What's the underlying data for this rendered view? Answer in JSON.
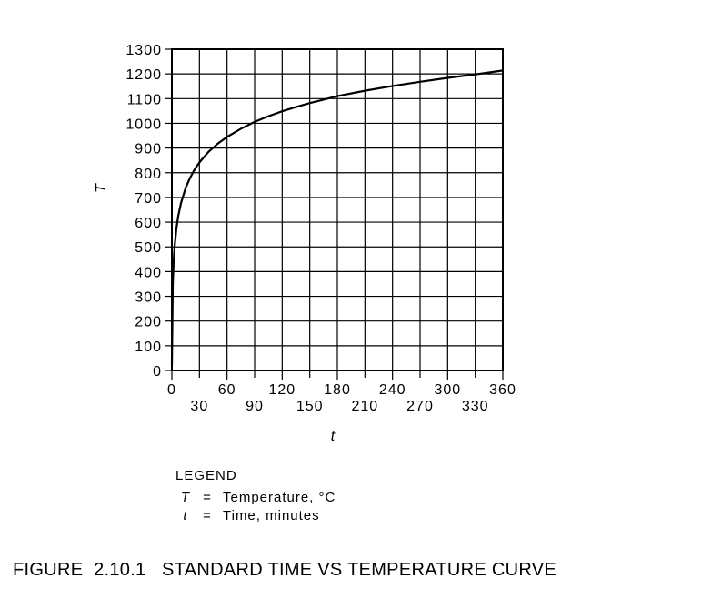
{
  "chart_data": {
    "type": "line",
    "xlabel": "t",
    "ylabel": "T",
    "xlim": [
      0,
      360
    ],
    "ylim": [
      0,
      1300
    ],
    "grid": true,
    "x_ticks_top": [
      "0",
      "60",
      "120",
      "180",
      "240",
      "300",
      "360"
    ],
    "x_ticks_bottom": [
      "30",
      "90",
      "150",
      "210",
      "270",
      "330"
    ],
    "y_ticks": [
      "0",
      "100",
      "200",
      "300",
      "400",
      "500",
      "600",
      "700",
      "800",
      "900",
      "1000",
      "1100",
      "1200",
      "1300"
    ],
    "series": [
      {
        "x": [
          0,
          1,
          2,
          3,
          5,
          7,
          10,
          15,
          20,
          25,
          30,
          40,
          50,
          60,
          75,
          90,
          105,
          120,
          135,
          150,
          165,
          180,
          210,
          240,
          270,
          300,
          330,
          360
        ],
        "y": [
          20,
          349,
          445,
          502,
          576,
          626,
          678,
          739,
          781,
          815,
          842,
          885,
          918,
          945,
          978,
          1006,
          1029,
          1049,
          1066,
          1082,
          1096,
          1110,
          1132,
          1151,
          1168,
          1184,
          1198,
          1214
        ]
      }
    ]
  },
  "legend": {
    "title": "LEGEND",
    "items": [
      {
        "symbol": "T",
        "eq": "=",
        "desc": "Temperature, °C"
      },
      {
        "symbol": "t",
        "eq": "=",
        "desc": "Time, minutes"
      }
    ]
  },
  "caption": "FIGURE  2.10.1   STANDARD TIME VS TEMPERATURE CURVE"
}
